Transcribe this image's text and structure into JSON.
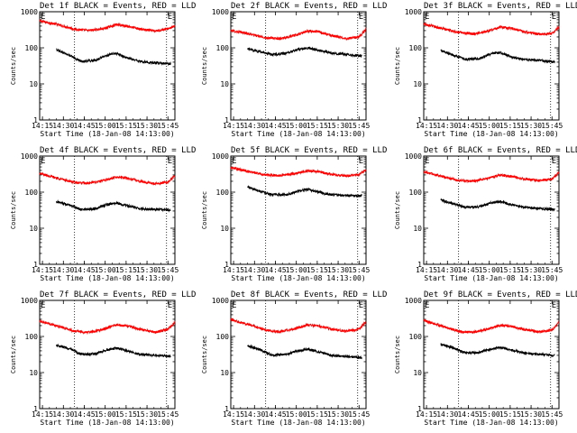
{
  "figure": {
    "title_suffix": "BLACK = Events, RED = LLD",
    "xlabel": "Start Time (18-Jan-08 14:13:00)",
    "ylabel": "Counts/sec",
    "x_ticks": [
      "14:15",
      "14:30",
      "14:45",
      "15:00",
      "15:15",
      "15:30",
      "15:45"
    ],
    "y_ticks": [
      "1",
      "10",
      "100",
      "1000"
    ],
    "marker_label": "E",
    "colors": {
      "events": "#000000",
      "lld": "#ff0000"
    }
  },
  "chart_data": [
    {
      "type": "line",
      "title": "Det 1f BLACK = Events, RED = LLD",
      "xlabel": "Start Time (18-Jan-08 14:13:00)",
      "ylabel": "Counts/sec",
      "x_unit": "minutes since 14:13:00",
      "xlim": [
        0,
        97
      ],
      "ylim": [
        1,
        1000
      ],
      "yscale": "log",
      "markers_x": [
        25,
        91
      ],
      "series": [
        {
          "name": "RED = LLD",
          "color": "#ff0000",
          "x_range": [
            0,
            97
          ],
          "anchors": [
            [
              0,
              560
            ],
            [
              12,
              450
            ],
            [
              25,
              330
            ],
            [
              35,
              300
            ],
            [
              46,
              340
            ],
            [
              55,
              440
            ],
            [
              63,
              400
            ],
            [
              72,
              330
            ],
            [
              83,
              290
            ],
            [
              92,
              340
            ],
            [
              97,
              400
            ]
          ]
        },
        {
          "name": "BLACK = Events",
          "color": "#000000",
          "x_range": [
            12,
            94
          ],
          "anchors": [
            [
              12,
              90
            ],
            [
              20,
              65
            ],
            [
              30,
              42
            ],
            [
              40,
              45
            ],
            [
              48,
              62
            ],
            [
              55,
              70
            ],
            [
              63,
              52
            ],
            [
              72,
              42
            ],
            [
              83,
              38
            ],
            [
              94,
              36
            ]
          ]
        }
      ]
    },
    {
      "type": "line",
      "title": "Det 2f BLACK = Events, RED = LLD",
      "xlabel": "Start Time (18-Jan-08 14:13:00)",
      "ylabel": "Counts/sec",
      "x_unit": "minutes since 14:13:00",
      "xlim": [
        0,
        97
      ],
      "ylim": [
        1,
        1000
      ],
      "yscale": "log",
      "markers_x": [
        25,
        91
      ],
      "series": [
        {
          "name": "RED = LLD",
          "color": "#ff0000",
          "x_range": [
            0,
            97
          ],
          "anchors": [
            [
              0,
              300
            ],
            [
              12,
              250
            ],
            [
              25,
              190
            ],
            [
              35,
              180
            ],
            [
              46,
              220
            ],
            [
              55,
              290
            ],
            [
              63,
              280
            ],
            [
              72,
              220
            ],
            [
              83,
              180
            ],
            [
              92,
              200
            ],
            [
              97,
              330
            ]
          ]
        },
        {
          "name": "BLACK = Events",
          "color": "#000000",
          "x_range": [
            12,
            94
          ],
          "anchors": [
            [
              12,
              95
            ],
            [
              20,
              80
            ],
            [
              30,
              65
            ],
            [
              40,
              70
            ],
            [
              48,
              90
            ],
            [
              55,
              100
            ],
            [
              63,
              85
            ],
            [
              72,
              72
            ],
            [
              83,
              65
            ],
            [
              94,
              60
            ]
          ]
        }
      ]
    },
    {
      "type": "line",
      "title": "Det 3f BLACK = Events, RED = LLD",
      "xlabel": "Start Time (18-Jan-08 14:13:00)",
      "ylabel": "Counts/sec",
      "x_unit": "minutes since 14:13:00",
      "xlim": [
        0,
        97
      ],
      "ylim": [
        1,
        1000
      ],
      "yscale": "log",
      "markers_x": [
        25,
        91
      ],
      "series": [
        {
          "name": "RED = LLD",
          "color": "#ff0000",
          "x_range": [
            0,
            97
          ],
          "anchors": [
            [
              0,
              470
            ],
            [
              12,
              350
            ],
            [
              25,
              270
            ],
            [
              35,
              240
            ],
            [
              46,
              290
            ],
            [
              55,
              380
            ],
            [
              63,
              350
            ],
            [
              72,
              280
            ],
            [
              83,
              240
            ],
            [
              92,
              250
            ],
            [
              97,
              380
            ]
          ]
        },
        {
          "name": "BLACK = Events",
          "color": "#000000",
          "x_range": [
            12,
            94
          ],
          "anchors": [
            [
              12,
              85
            ],
            [
              20,
              65
            ],
            [
              30,
              48
            ],
            [
              40,
              50
            ],
            [
              48,
              68
            ],
            [
              55,
              75
            ],
            [
              63,
              55
            ],
            [
              72,
              48
            ],
            [
              83,
              45
            ],
            [
              94,
              40
            ]
          ]
        }
      ]
    },
    {
      "type": "line",
      "title": "Det 4f BLACK = Events, RED = LLD",
      "xlabel": "Start Time (18-Jan-08 14:13:00)",
      "ylabel": "Counts/sec",
      "x_unit": "minutes since 14:13:00",
      "xlim": [
        0,
        97
      ],
      "ylim": [
        1,
        1000
      ],
      "yscale": "log",
      "markers_x": [
        25,
        91
      ],
      "series": [
        {
          "name": "RED = LLD",
          "color": "#ff0000",
          "x_range": [
            0,
            97
          ],
          "anchors": [
            [
              0,
              330
            ],
            [
              12,
              250
            ],
            [
              25,
              185
            ],
            [
              35,
              175
            ],
            [
              46,
              210
            ],
            [
              55,
              260
            ],
            [
              63,
              245
            ],
            [
              72,
              200
            ],
            [
              83,
              170
            ],
            [
              92,
              190
            ],
            [
              97,
              290
            ]
          ]
        },
        {
          "name": "BLACK = Events",
          "color": "#000000",
          "x_range": [
            12,
            94
          ],
          "anchors": [
            [
              12,
              55
            ],
            [
              20,
              45
            ],
            [
              30,
              33
            ],
            [
              40,
              35
            ],
            [
              48,
              45
            ],
            [
              55,
              50
            ],
            [
              63,
              42
            ],
            [
              72,
              35
            ],
            [
              83,
              33
            ],
            [
              94,
              32
            ]
          ]
        }
      ]
    },
    {
      "type": "line",
      "title": "Det 5f BLACK = Events, RED = LLD",
      "xlabel": "Start Time (18-Jan-08 14:13:00)",
      "ylabel": "Counts/sec",
      "x_unit": "minutes since 14:13:00",
      "xlim": [
        0,
        97
      ],
      "ylim": [
        1,
        1000
      ],
      "yscale": "log",
      "markers_x": [
        25,
        91
      ],
      "series": [
        {
          "name": "RED = LLD",
          "color": "#ff0000",
          "x_range": [
            0,
            97
          ],
          "anchors": [
            [
              0,
              480
            ],
            [
              12,
              380
            ],
            [
              25,
              300
            ],
            [
              35,
              290
            ],
            [
              46,
              330
            ],
            [
              55,
              390
            ],
            [
              63,
              370
            ],
            [
              72,
              310
            ],
            [
              83,
              280
            ],
            [
              92,
              310
            ],
            [
              97,
              420
            ]
          ]
        },
        {
          "name": "BLACK = Events",
          "color": "#000000",
          "x_range": [
            12,
            94
          ],
          "anchors": [
            [
              12,
              140
            ],
            [
              20,
              110
            ],
            [
              30,
              85
            ],
            [
              40,
              85
            ],
            [
              48,
              105
            ],
            [
              55,
              120
            ],
            [
              63,
              100
            ],
            [
              72,
              85
            ],
            [
              83,
              80
            ],
            [
              94,
              80
            ]
          ]
        }
      ]
    },
    {
      "type": "line",
      "title": "Det 6f BLACK = Events, RED = LLD",
      "xlabel": "Start Time (18-Jan-08 14:13:00)",
      "ylabel": "Counts/sec",
      "x_unit": "minutes since 14:13:00",
      "xlim": [
        0,
        97
      ],
      "ylim": [
        1,
        1000
      ],
      "yscale": "log",
      "markers_x": [
        25,
        91
      ],
      "series": [
        {
          "name": "RED = LLD",
          "color": "#ff0000",
          "x_range": [
            0,
            97
          ],
          "anchors": [
            [
              0,
              370
            ],
            [
              12,
              280
            ],
            [
              25,
              210
            ],
            [
              35,
              200
            ],
            [
              46,
              240
            ],
            [
              55,
              300
            ],
            [
              63,
              270
            ],
            [
              72,
              230
            ],
            [
              83,
              210
            ],
            [
              92,
              230
            ],
            [
              97,
              360
            ]
          ]
        },
        {
          "name": "BLACK = Events",
          "color": "#000000",
          "x_range": [
            12,
            94
          ],
          "anchors": [
            [
              12,
              60
            ],
            [
              20,
              50
            ],
            [
              30,
              38
            ],
            [
              40,
              40
            ],
            [
              48,
              50
            ],
            [
              55,
              55
            ],
            [
              63,
              45
            ],
            [
              72,
              38
            ],
            [
              83,
              35
            ],
            [
              94,
              33
            ]
          ]
        }
      ]
    },
    {
      "type": "line",
      "title": "Det 7f BLACK = Events, RED = LLD",
      "xlabel": "Start Time (18-Jan-08 14:13:00)",
      "ylabel": "Counts/sec",
      "x_unit": "minutes since 14:13:00",
      "xlim": [
        0,
        97
      ],
      "ylim": [
        1,
        1000
      ],
      "yscale": "log",
      "markers_x": [
        25,
        91
      ],
      "series": [
        {
          "name": "RED = LLD",
          "color": "#ff0000",
          "x_range": [
            0,
            97
          ],
          "anchors": [
            [
              0,
              270
            ],
            [
              12,
              200
            ],
            [
              25,
              140
            ],
            [
              35,
              130
            ],
            [
              46,
              160
            ],
            [
              55,
              210
            ],
            [
              63,
              195
            ],
            [
              72,
              160
            ],
            [
              83,
              130
            ],
            [
              92,
              160
            ],
            [
              97,
              250
            ]
          ]
        },
        {
          "name": "BLACK = Events",
          "color": "#000000",
          "x_range": [
            12,
            94
          ],
          "anchors": [
            [
              12,
              58
            ],
            [
              20,
              48
            ],
            [
              30,
              32
            ],
            [
              40,
              33
            ],
            [
              48,
              42
            ],
            [
              55,
              48
            ],
            [
              63,
              40
            ],
            [
              72,
              32
            ],
            [
              83,
              30
            ],
            [
              94,
              28
            ]
          ]
        }
      ]
    },
    {
      "type": "line",
      "title": "Det 8f BLACK = Events, RED = LLD",
      "xlabel": "Start Time (18-Jan-08 14:13:00)",
      "ylabel": "Counts/sec",
      "x_unit": "minutes since 14:13:00",
      "xlim": [
        0,
        97
      ],
      "ylim": [
        1,
        1000
      ],
      "yscale": "log",
      "markers_x": [
        25,
        91
      ],
      "series": [
        {
          "name": "RED = LLD",
          "color": "#ff0000",
          "x_range": [
            0,
            97
          ],
          "anchors": [
            [
              0,
              300
            ],
            [
              12,
              220
            ],
            [
              25,
              150
            ],
            [
              35,
              135
            ],
            [
              46,
              165
            ],
            [
              55,
              210
            ],
            [
              63,
              195
            ],
            [
              72,
              160
            ],
            [
              83,
              140
            ],
            [
              92,
              160
            ],
            [
              97,
              260
            ]
          ]
        },
        {
          "name": "BLACK = Events",
          "color": "#000000",
          "x_range": [
            12,
            94
          ],
          "anchors": [
            [
              12,
              55
            ],
            [
              20,
              45
            ],
            [
              30,
              30
            ],
            [
              40,
              32
            ],
            [
              48,
              40
            ],
            [
              55,
              45
            ],
            [
              63,
              38
            ],
            [
              72,
              30
            ],
            [
              83,
              28
            ],
            [
              94,
              26
            ]
          ]
        }
      ]
    },
    {
      "type": "line",
      "title": "Det 9f BLACK = Events, RED = LLD",
      "xlabel": "Start Time (18-Jan-08 14:13:00)",
      "ylabel": "Counts/sec",
      "x_unit": "minutes since 14:13:00",
      "xlim": [
        0,
        97
      ],
      "ylim": [
        1,
        1000
      ],
      "yscale": "log",
      "markers_x": [
        25,
        91
      ],
      "series": [
        {
          "name": "RED = LLD",
          "color": "#ff0000",
          "x_range": [
            0,
            97
          ],
          "anchors": [
            [
              0,
              280
            ],
            [
              12,
              200
            ],
            [
              25,
              140
            ],
            [
              35,
              130
            ],
            [
              46,
              160
            ],
            [
              55,
              205
            ],
            [
              63,
              190
            ],
            [
              72,
              155
            ],
            [
              83,
              135
            ],
            [
              92,
              150
            ],
            [
              97,
              250
            ]
          ]
        },
        {
          "name": "BLACK = Events",
          "color": "#000000",
          "x_range": [
            12,
            94
          ],
          "anchors": [
            [
              12,
              60
            ],
            [
              20,
              50
            ],
            [
              30,
              35
            ],
            [
              40,
              36
            ],
            [
              48,
              45
            ],
            [
              55,
              50
            ],
            [
              63,
              42
            ],
            [
              72,
              35
            ],
            [
              83,
              32
            ],
            [
              94,
              30
            ]
          ]
        }
      ]
    }
  ]
}
